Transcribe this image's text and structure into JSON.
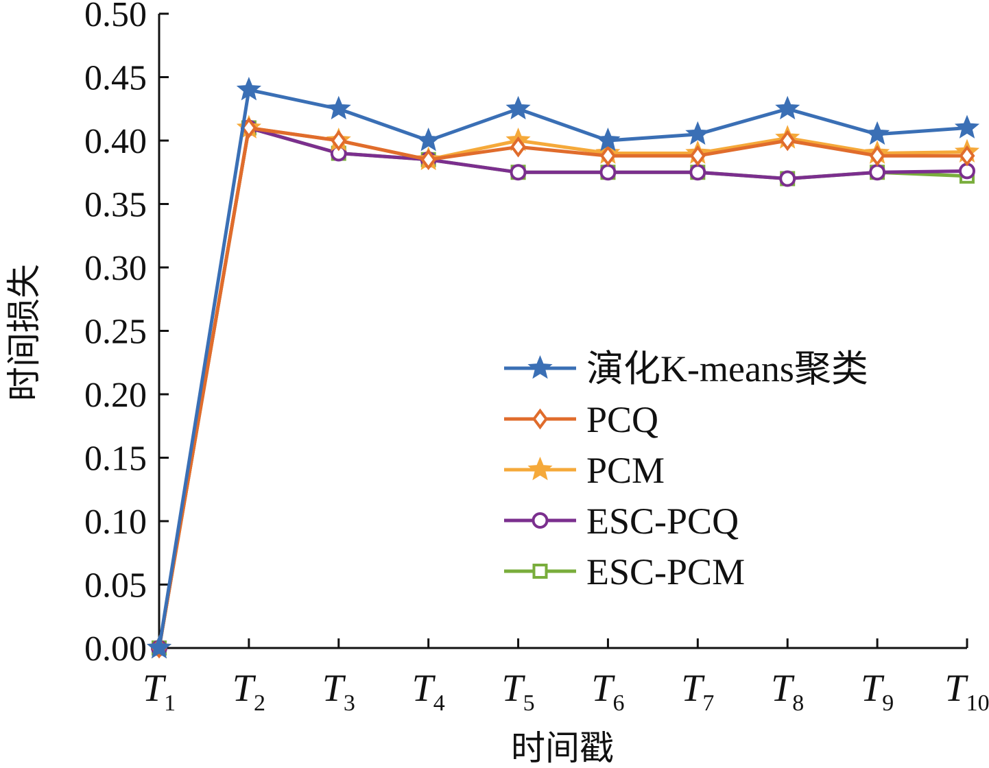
{
  "chart_data": {
    "type": "line",
    "title": "",
    "xlabel": "时间戳",
    "ylabel": "时间损失",
    "ylim": [
      0,
      0.5
    ],
    "yticks": [
      "0.00",
      "0.05",
      "0.10",
      "0.15",
      "0.20",
      "0.25",
      "0.30",
      "0.35",
      "0.40",
      "0.45",
      "0.50"
    ],
    "categories": [
      {
        "main": "T",
        "sub": "1"
      },
      {
        "main": "T",
        "sub": "2"
      },
      {
        "main": "T",
        "sub": "3"
      },
      {
        "main": "T",
        "sub": "4"
      },
      {
        "main": "T",
        "sub": "5"
      },
      {
        "main": "T",
        "sub": "6"
      },
      {
        "main": "T",
        "sub": "7"
      },
      {
        "main": "T",
        "sub": "8"
      },
      {
        "main": "T",
        "sub": "9"
      },
      {
        "main": "T",
        "sub": "10"
      }
    ],
    "grid": false,
    "legend_position": "center-right",
    "series": [
      {
        "name": "演化K-means聚类",
        "color": "#3a6fb5",
        "marker": "star",
        "values": [
          0.0,
          0.44,
          0.425,
          0.4,
          0.425,
          0.4,
          0.405,
          0.425,
          0.405,
          0.41
        ]
      },
      {
        "name": "PCQ",
        "color": "#e06c2c",
        "marker": "diamond",
        "values": [
          0.0,
          0.41,
          0.4,
          0.385,
          0.395,
          0.388,
          0.388,
          0.4,
          0.388,
          0.388
        ]
      },
      {
        "name": "PCM",
        "color": "#f5a93a",
        "marker": "star",
        "values": [
          0.0,
          0.41,
          0.4,
          0.385,
          0.4,
          0.39,
          0.39,
          0.402,
          0.39,
          0.391
        ]
      },
      {
        "name": "ESC-PCQ",
        "color": "#7b2f8e",
        "marker": "circle",
        "values": [
          0.0,
          0.41,
          0.39,
          0.385,
          0.375,
          0.375,
          0.375,
          0.37,
          0.375,
          0.376
        ]
      },
      {
        "name": "ESC-PCM",
        "color": "#79ad3c",
        "marker": "square",
        "values": [
          0.0,
          0.41,
          0.39,
          0.385,
          0.375,
          0.375,
          0.375,
          0.37,
          0.375,
          0.372
        ]
      }
    ]
  }
}
